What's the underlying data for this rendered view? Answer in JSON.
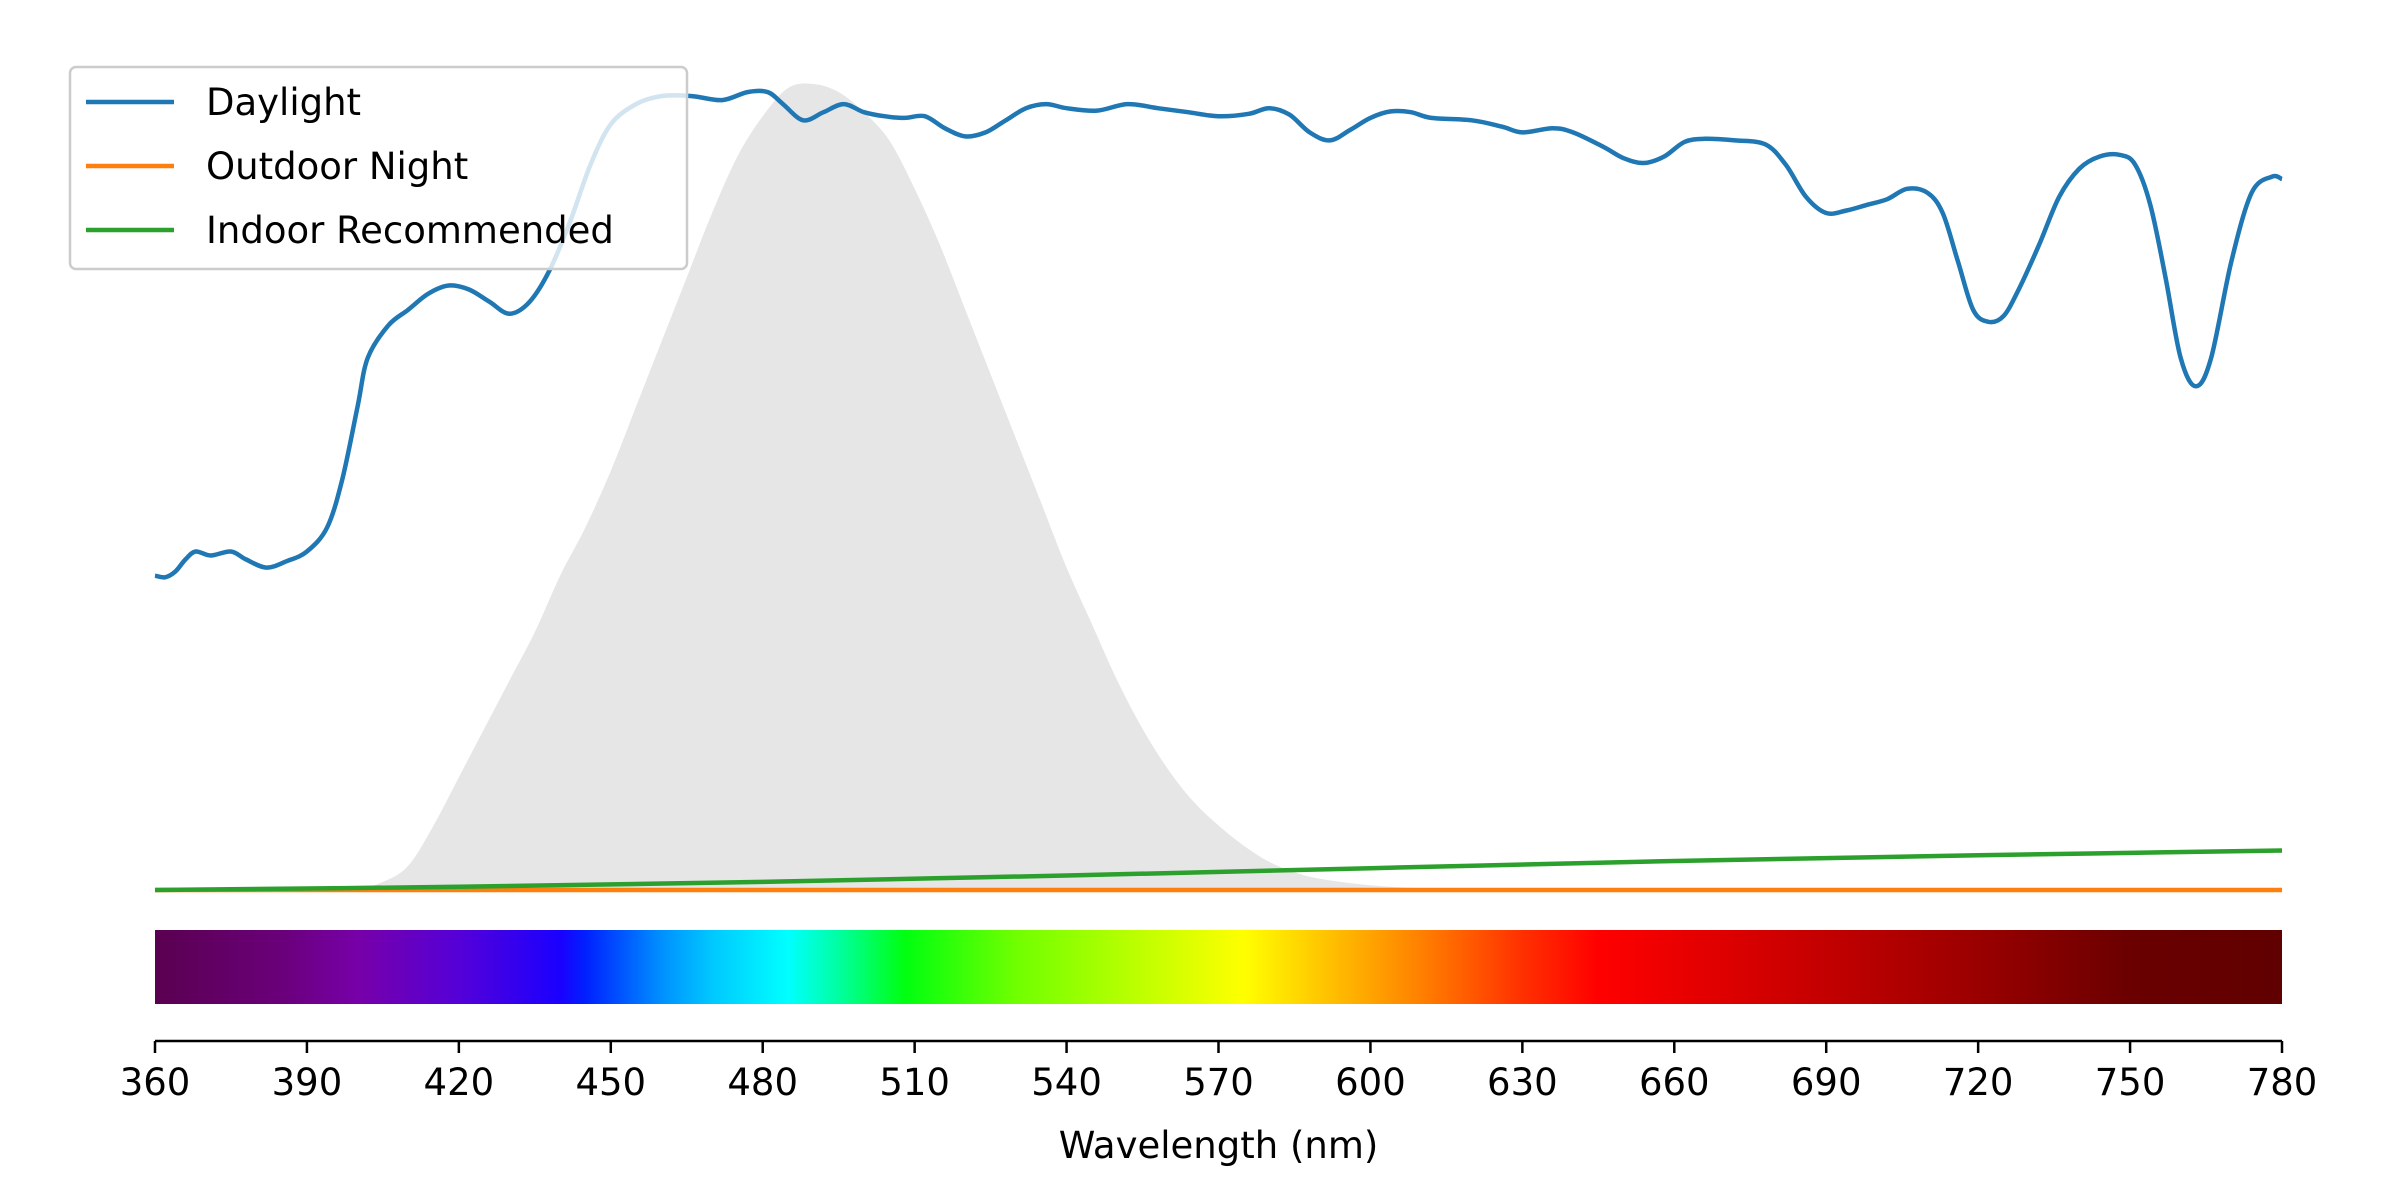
{
  "chart_data": {
    "type": "line",
    "title": "",
    "xlabel": "Wavelength (nm)",
    "ylabel": "",
    "xlim": [
      360,
      780
    ],
    "ylim": [
      0,
      1.0
    ],
    "x_ticks": [
      "360",
      "390",
      "420",
      "450",
      "480",
      "510",
      "540",
      "570",
      "600",
      "630",
      "660",
      "690",
      "720",
      "750",
      "780"
    ],
    "grid": false,
    "legend_position": "top-left",
    "y_axis_visible": false,
    "background_curve": {
      "description_type": "area",
      "color": "#e6e6e6",
      "points": [
        [
          360,
          0.0
        ],
        [
          390,
          0.0
        ],
        [
          400,
          0.002
        ],
        [
          405,
          0.01
        ],
        [
          410,
          0.03
        ],
        [
          415,
          0.08
        ],
        [
          420,
          0.14
        ],
        [
          425,
          0.2
        ],
        [
          430,
          0.26
        ],
        [
          435,
          0.32
        ],
        [
          440,
          0.39
        ],
        [
          445,
          0.45
        ],
        [
          450,
          0.52
        ],
        [
          455,
          0.6
        ],
        [
          460,
          0.68
        ],
        [
          465,
          0.76
        ],
        [
          470,
          0.84
        ],
        [
          475,
          0.91
        ],
        [
          480,
          0.96
        ],
        [
          485,
          0.995
        ],
        [
          490,
          1.0
        ],
        [
          495,
          0.99
        ],
        [
          500,
          0.965
        ],
        [
          505,
          0.93
        ],
        [
          510,
          0.87
        ],
        [
          515,
          0.8
        ],
        [
          520,
          0.72
        ],
        [
          525,
          0.64
        ],
        [
          530,
          0.56
        ],
        [
          535,
          0.48
        ],
        [
          540,
          0.4
        ],
        [
          545,
          0.33
        ],
        [
          550,
          0.26
        ],
        [
          555,
          0.2
        ],
        [
          560,
          0.15
        ],
        [
          565,
          0.11
        ],
        [
          570,
          0.08
        ],
        [
          575,
          0.055
        ],
        [
          580,
          0.035
        ],
        [
          585,
          0.022
        ],
        [
          590,
          0.014
        ],
        [
          600,
          0.006
        ],
        [
          610,
          0.002
        ],
        [
          620,
          0.0
        ],
        [
          780,
          0.0
        ]
      ]
    },
    "series": [
      {
        "name": "Daylight",
        "color": "#1f77b4",
        "points": [
          [
            360,
            0.39
          ],
          [
            362,
            0.388
          ],
          [
            364,
            0.395
          ],
          [
            366,
            0.41
          ],
          [
            368,
            0.42
          ],
          [
            371,
            0.415
          ],
          [
            375,
            0.42
          ],
          [
            378,
            0.41
          ],
          [
            382,
            0.4
          ],
          [
            386,
            0.408
          ],
          [
            390,
            0.42
          ],
          [
            394,
            0.45
          ],
          [
            397,
            0.51
          ],
          [
            400,
            0.6
          ],
          [
            402,
            0.66
          ],
          [
            406,
            0.7
          ],
          [
            410,
            0.72
          ],
          [
            414,
            0.74
          ],
          [
            418,
            0.75
          ],
          [
            422,
            0.745
          ],
          [
            426,
            0.73
          ],
          [
            430,
            0.715
          ],
          [
            434,
            0.73
          ],
          [
            438,
            0.77
          ],
          [
            442,
            0.83
          ],
          [
            446,
            0.9
          ],
          [
            450,
            0.95
          ],
          [
            455,
            0.975
          ],
          [
            460,
            0.985
          ],
          [
            466,
            0.985
          ],
          [
            472,
            0.98
          ],
          [
            477,
            0.99
          ],
          [
            481,
            0.99
          ],
          [
            484,
            0.975
          ],
          [
            488,
            0.955
          ],
          [
            492,
            0.965
          ],
          [
            496,
            0.975
          ],
          [
            500,
            0.965
          ],
          [
            504,
            0.96
          ],
          [
            508,
            0.958
          ],
          [
            512,
            0.96
          ],
          [
            516,
            0.945
          ],
          [
            520,
            0.935
          ],
          [
            524,
            0.94
          ],
          [
            528,
            0.955
          ],
          [
            532,
            0.97
          ],
          [
            536,
            0.975
          ],
          [
            540,
            0.97
          ],
          [
            546,
            0.967
          ],
          [
            552,
            0.975
          ],
          [
            558,
            0.97
          ],
          [
            564,
            0.965
          ],
          [
            570,
            0.96
          ],
          [
            576,
            0.963
          ],
          [
            580,
            0.97
          ],
          [
            584,
            0.962
          ],
          [
            588,
            0.94
          ],
          [
            592,
            0.93
          ],
          [
            596,
            0.943
          ],
          [
            600,
            0.958
          ],
          [
            604,
            0.966
          ],
          [
            608,
            0.965
          ],
          [
            612,
            0.958
          ],
          [
            620,
            0.955
          ],
          [
            626,
            0.947
          ],
          [
            630,
            0.94
          ],
          [
            636,
            0.945
          ],
          [
            640,
            0.94
          ],
          [
            646,
            0.922
          ],
          [
            650,
            0.908
          ],
          [
            654,
            0.902
          ],
          [
            658,
            0.91
          ],
          [
            662,
            0.928
          ],
          [
            666,
            0.932
          ],
          [
            672,
            0.93
          ],
          [
            678,
            0.925
          ],
          [
            682,
            0.9
          ],
          [
            686,
            0.86
          ],
          [
            690,
            0.84
          ],
          [
            694,
            0.843
          ],
          [
            698,
            0.85
          ],
          [
            702,
            0.857
          ],
          [
            706,
            0.87
          ],
          [
            710,
            0.865
          ],
          [
            713,
            0.84
          ],
          [
            716,
            0.78
          ],
          [
            719,
            0.72
          ],
          [
            722,
            0.705
          ],
          [
            725,
            0.712
          ],
          [
            728,
            0.745
          ],
          [
            732,
            0.8
          ],
          [
            736,
            0.86
          ],
          [
            740,
            0.895
          ],
          [
            744,
            0.91
          ],
          [
            748,
            0.912
          ],
          [
            751,
            0.9
          ],
          [
            754,
            0.85
          ],
          [
            757,
            0.76
          ],
          [
            760,
            0.66
          ],
          [
            763,
            0.625
          ],
          [
            766,
            0.66
          ],
          [
            770,
            0.78
          ],
          [
            774,
            0.865
          ],
          [
            778,
            0.885
          ],
          [
            780,
            0.882
          ]
        ]
      },
      {
        "name": "Outdoor Night",
        "color": "#ff7f0e",
        "points": [
          [
            360,
            0.0
          ],
          [
            780,
            0.0
          ]
        ]
      },
      {
        "name": "Indoor Recommended",
        "color": "#2ca02c",
        "points": [
          [
            360,
            0.0
          ],
          [
            420,
            0.004
          ],
          [
            480,
            0.01
          ],
          [
            540,
            0.018
          ],
          [
            600,
            0.027
          ],
          [
            660,
            0.036
          ],
          [
            720,
            0.043
          ],
          [
            780,
            0.049
          ]
        ]
      }
    ],
    "spectrum_bar": {
      "range": [
        360,
        780
      ],
      "stops": [
        [
          360,
          "#5a0050"
        ],
        [
          385,
          "#6a007a"
        ],
        [
          400,
          "#7700a8"
        ],
        [
          420,
          "#5500d8"
        ],
        [
          440,
          "#1a00ff"
        ],
        [
          445,
          "#0020ff"
        ],
        [
          460,
          "#0090ff"
        ],
        [
          470,
          "#00c8ff"
        ],
        [
          485,
          "#00ffff"
        ],
        [
          495,
          "#00ffa0"
        ],
        [
          508,
          "#00ff10"
        ],
        [
          530,
          "#70ff00"
        ],
        [
          555,
          "#c0ff00"
        ],
        [
          575,
          "#ffff00"
        ],
        [
          592,
          "#ffc000"
        ],
        [
          610,
          "#ff8000"
        ],
        [
          630,
          "#ff3000"
        ],
        [
          645,
          "#ff0000"
        ],
        [
          680,
          "#d00000"
        ],
        [
          720,
          "#9a0000"
        ],
        [
          750,
          "#6a0000"
        ],
        [
          780,
          "#600000"
        ]
      ]
    }
  }
}
